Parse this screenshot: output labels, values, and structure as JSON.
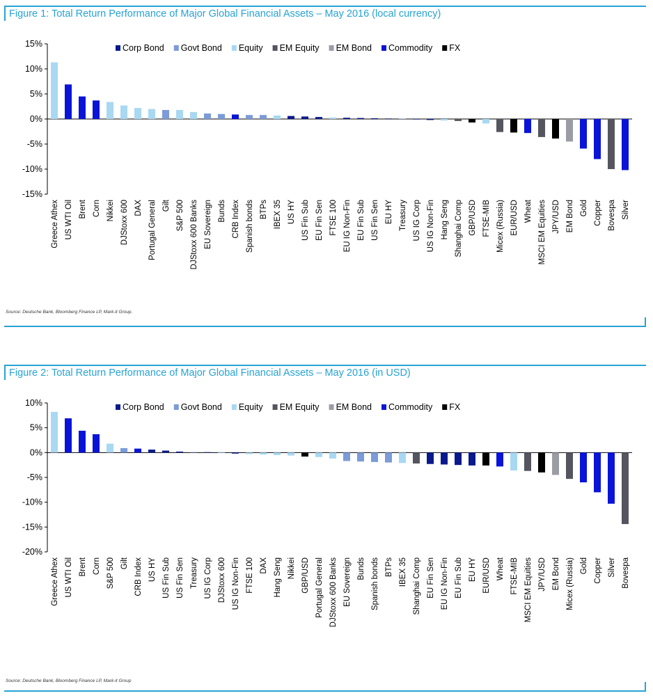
{
  "colors": {
    "accent": "#27a3d4",
    "Corp Bond": "#0a1a8c",
    "Govt Bond": "#7c9bd8",
    "Equity": "#a9d8f2",
    "EM Equity": "#55555f",
    "EM Bond": "#9c9ca4",
    "Commodity": "#0a14d8",
    "FX": "#000000"
  },
  "source_text_1": "Source: Deutsche Bank, Bloomberg Finance LP, Mark-it Group.",
  "source_text_2": "Source: Deutsche Bank, Bloomberg Finance LP, Mark-it Group",
  "chart_data": [
    {
      "type": "bar",
      "title": "Figure 1: Total Return Performance of Major Global Financial Assets – May 2016 (local currency)",
      "ylim": [
        -15,
        15
      ],
      "yticks": [
        15,
        10,
        5,
        0,
        -5,
        -10,
        -15
      ],
      "ytick_labels": [
        "15%",
        "10%",
        "5%",
        "0%",
        "-5%",
        "-10%",
        "-15%"
      ],
      "legend": [
        "Corp Bond",
        "Govt Bond",
        "Equity",
        "EM Equity",
        "EM Bond",
        "Commodity",
        "FX"
      ],
      "legend_position": "top",
      "grid": false,
      "categories": [
        "Greece Athex",
        "US WTI Oil",
        "Brent",
        "Corn",
        "Nikkei",
        "DJStoxx 600",
        "DAX",
        "Portugal General",
        "Gilt",
        "S&P 500",
        "DJStoxx 600 Banks",
        "EU Sovereign",
        "Bunds",
        "CRB Index",
        "Spanish bonds",
        "BTPs",
        "IBEX 35",
        "US HY",
        "US Fin Sub",
        "EU Fin Sen",
        "FTSE 100",
        "EU IG Non-Fin",
        "EU Fin Sub",
        "US Fin Sen",
        "EU HY",
        "Treasury",
        "US IG Corp",
        "US IG Non-Fin",
        "Hang Seng",
        "Shanghai Comp",
        "GBP/USD",
        "FTSE-MIB",
        "Micex (Russia)",
        "EUR/USD",
        "Wheat",
        "MSCI EM Equities",
        "JPY/USD",
        "EM Bond",
        "Gold",
        "Copper",
        "Bovespa",
        "Silver"
      ],
      "values": [
        11.3,
        6.9,
        4.5,
        3.7,
        3.4,
        2.7,
        2.2,
        2.0,
        1.8,
        1.8,
        1.4,
        1.1,
        1.0,
        0.9,
        0.8,
        0.8,
        0.7,
        0.6,
        0.5,
        0.4,
        0.3,
        0.25,
        0.2,
        0.15,
        0.1,
        0.05,
        -0.1,
        -0.2,
        -0.3,
        -0.4,
        -0.7,
        -0.9,
        -2.6,
        -2.7,
        -2.8,
        -3.6,
        -3.9,
        -4.5,
        -5.9,
        -8.0,
        -10.0,
        -10.2
      ],
      "classes": [
        "Equity",
        "Commodity",
        "Commodity",
        "Commodity",
        "Equity",
        "Equity",
        "Equity",
        "Equity",
        "Govt Bond",
        "Equity",
        "Equity",
        "Govt Bond",
        "Govt Bond",
        "Commodity",
        "Govt Bond",
        "Govt Bond",
        "Equity",
        "Corp Bond",
        "Corp Bond",
        "Corp Bond",
        "Equity",
        "Corp Bond",
        "Corp Bond",
        "Corp Bond",
        "Corp Bond",
        "Govt Bond",
        "Corp Bond",
        "Corp Bond",
        "Equity",
        "EM Equity",
        "FX",
        "Equity",
        "EM Equity",
        "FX",
        "Commodity",
        "EM Equity",
        "FX",
        "EM Bond",
        "Commodity",
        "Commodity",
        "EM Equity",
        "Commodity"
      ]
    },
    {
      "type": "bar",
      "title": "Figure 2: Total Return Performance of Major Global Financial Assets – May 2016 (in USD)",
      "ylim": [
        -20,
        10
      ],
      "yticks": [
        10,
        5,
        0,
        -5,
        -10,
        -15,
        -20
      ],
      "ytick_labels": [
        "10%",
        "5%",
        "0%",
        "-5%",
        "-10%",
        "-15%",
        "-20%"
      ],
      "legend": [
        "Corp Bond",
        "Govt Bond",
        "Equity",
        "EM Equity",
        "EM Bond",
        "Commodity",
        "FX"
      ],
      "legend_position": "top",
      "grid": false,
      "categories": [
        "Greece Athex",
        "US WTI Oil",
        "Brent",
        "Corn",
        "S&P 500",
        "Gilt",
        "CRB Index",
        "US HY",
        "US Fin Sub",
        "US Fin Sen",
        "Treasury",
        "US IG Corp",
        "DJStoxx 600",
        "US IG Non-Fin",
        "FTSE 100",
        "DAX",
        "Hang Seng",
        "Nikkei",
        "GBP/USD",
        "Portugal General",
        "DJStoxx 600 Banks",
        "EU Sovereign",
        "Bunds",
        "Spanish bonds",
        "BTPs",
        "IBEX 35",
        "Shanghai Comp",
        "EU Fin Sen",
        "EU IG Non-Fin",
        "EU Fin Sub",
        "EU HY",
        "EUR/USD",
        "Wheat",
        "FTSE-MIB",
        "MSCI EM Equities",
        "JPY/USD",
        "EM Bond",
        "Micex (Russia)",
        "Gold",
        "Copper",
        "Silver",
        "Bovespa"
      ],
      "values": [
        8.2,
        6.9,
        4.4,
        3.7,
        1.8,
        0.9,
        0.8,
        0.6,
        0.4,
        0.2,
        0.1,
        0.05,
        -0.1,
        -0.2,
        -0.3,
        -0.4,
        -0.5,
        -0.6,
        -0.8,
        -0.9,
        -1.2,
        -1.7,
        -1.8,
        -1.9,
        -2.0,
        -2.1,
        -2.2,
        -2.3,
        -2.4,
        -2.5,
        -2.6,
        -2.6,
        -2.8,
        -3.6,
        -3.7,
        -4.0,
        -4.5,
        -5.3,
        -6.0,
        -8.0,
        -10.3,
        -14.4
      ],
      "classes": [
        "Equity",
        "Commodity",
        "Commodity",
        "Commodity",
        "Equity",
        "Govt Bond",
        "Commodity",
        "Corp Bond",
        "Corp Bond",
        "Corp Bond",
        "Govt Bond",
        "Corp Bond",
        "Equity",
        "Corp Bond",
        "Equity",
        "Equity",
        "Equity",
        "Equity",
        "FX",
        "Equity",
        "Equity",
        "Govt Bond",
        "Govt Bond",
        "Govt Bond",
        "Govt Bond",
        "Equity",
        "EM Equity",
        "Corp Bond",
        "Corp Bond",
        "Corp Bond",
        "Corp Bond",
        "FX",
        "Commodity",
        "Equity",
        "EM Equity",
        "FX",
        "EM Bond",
        "EM Equity",
        "Commodity",
        "Commodity",
        "Commodity",
        "EM Equity"
      ]
    }
  ]
}
